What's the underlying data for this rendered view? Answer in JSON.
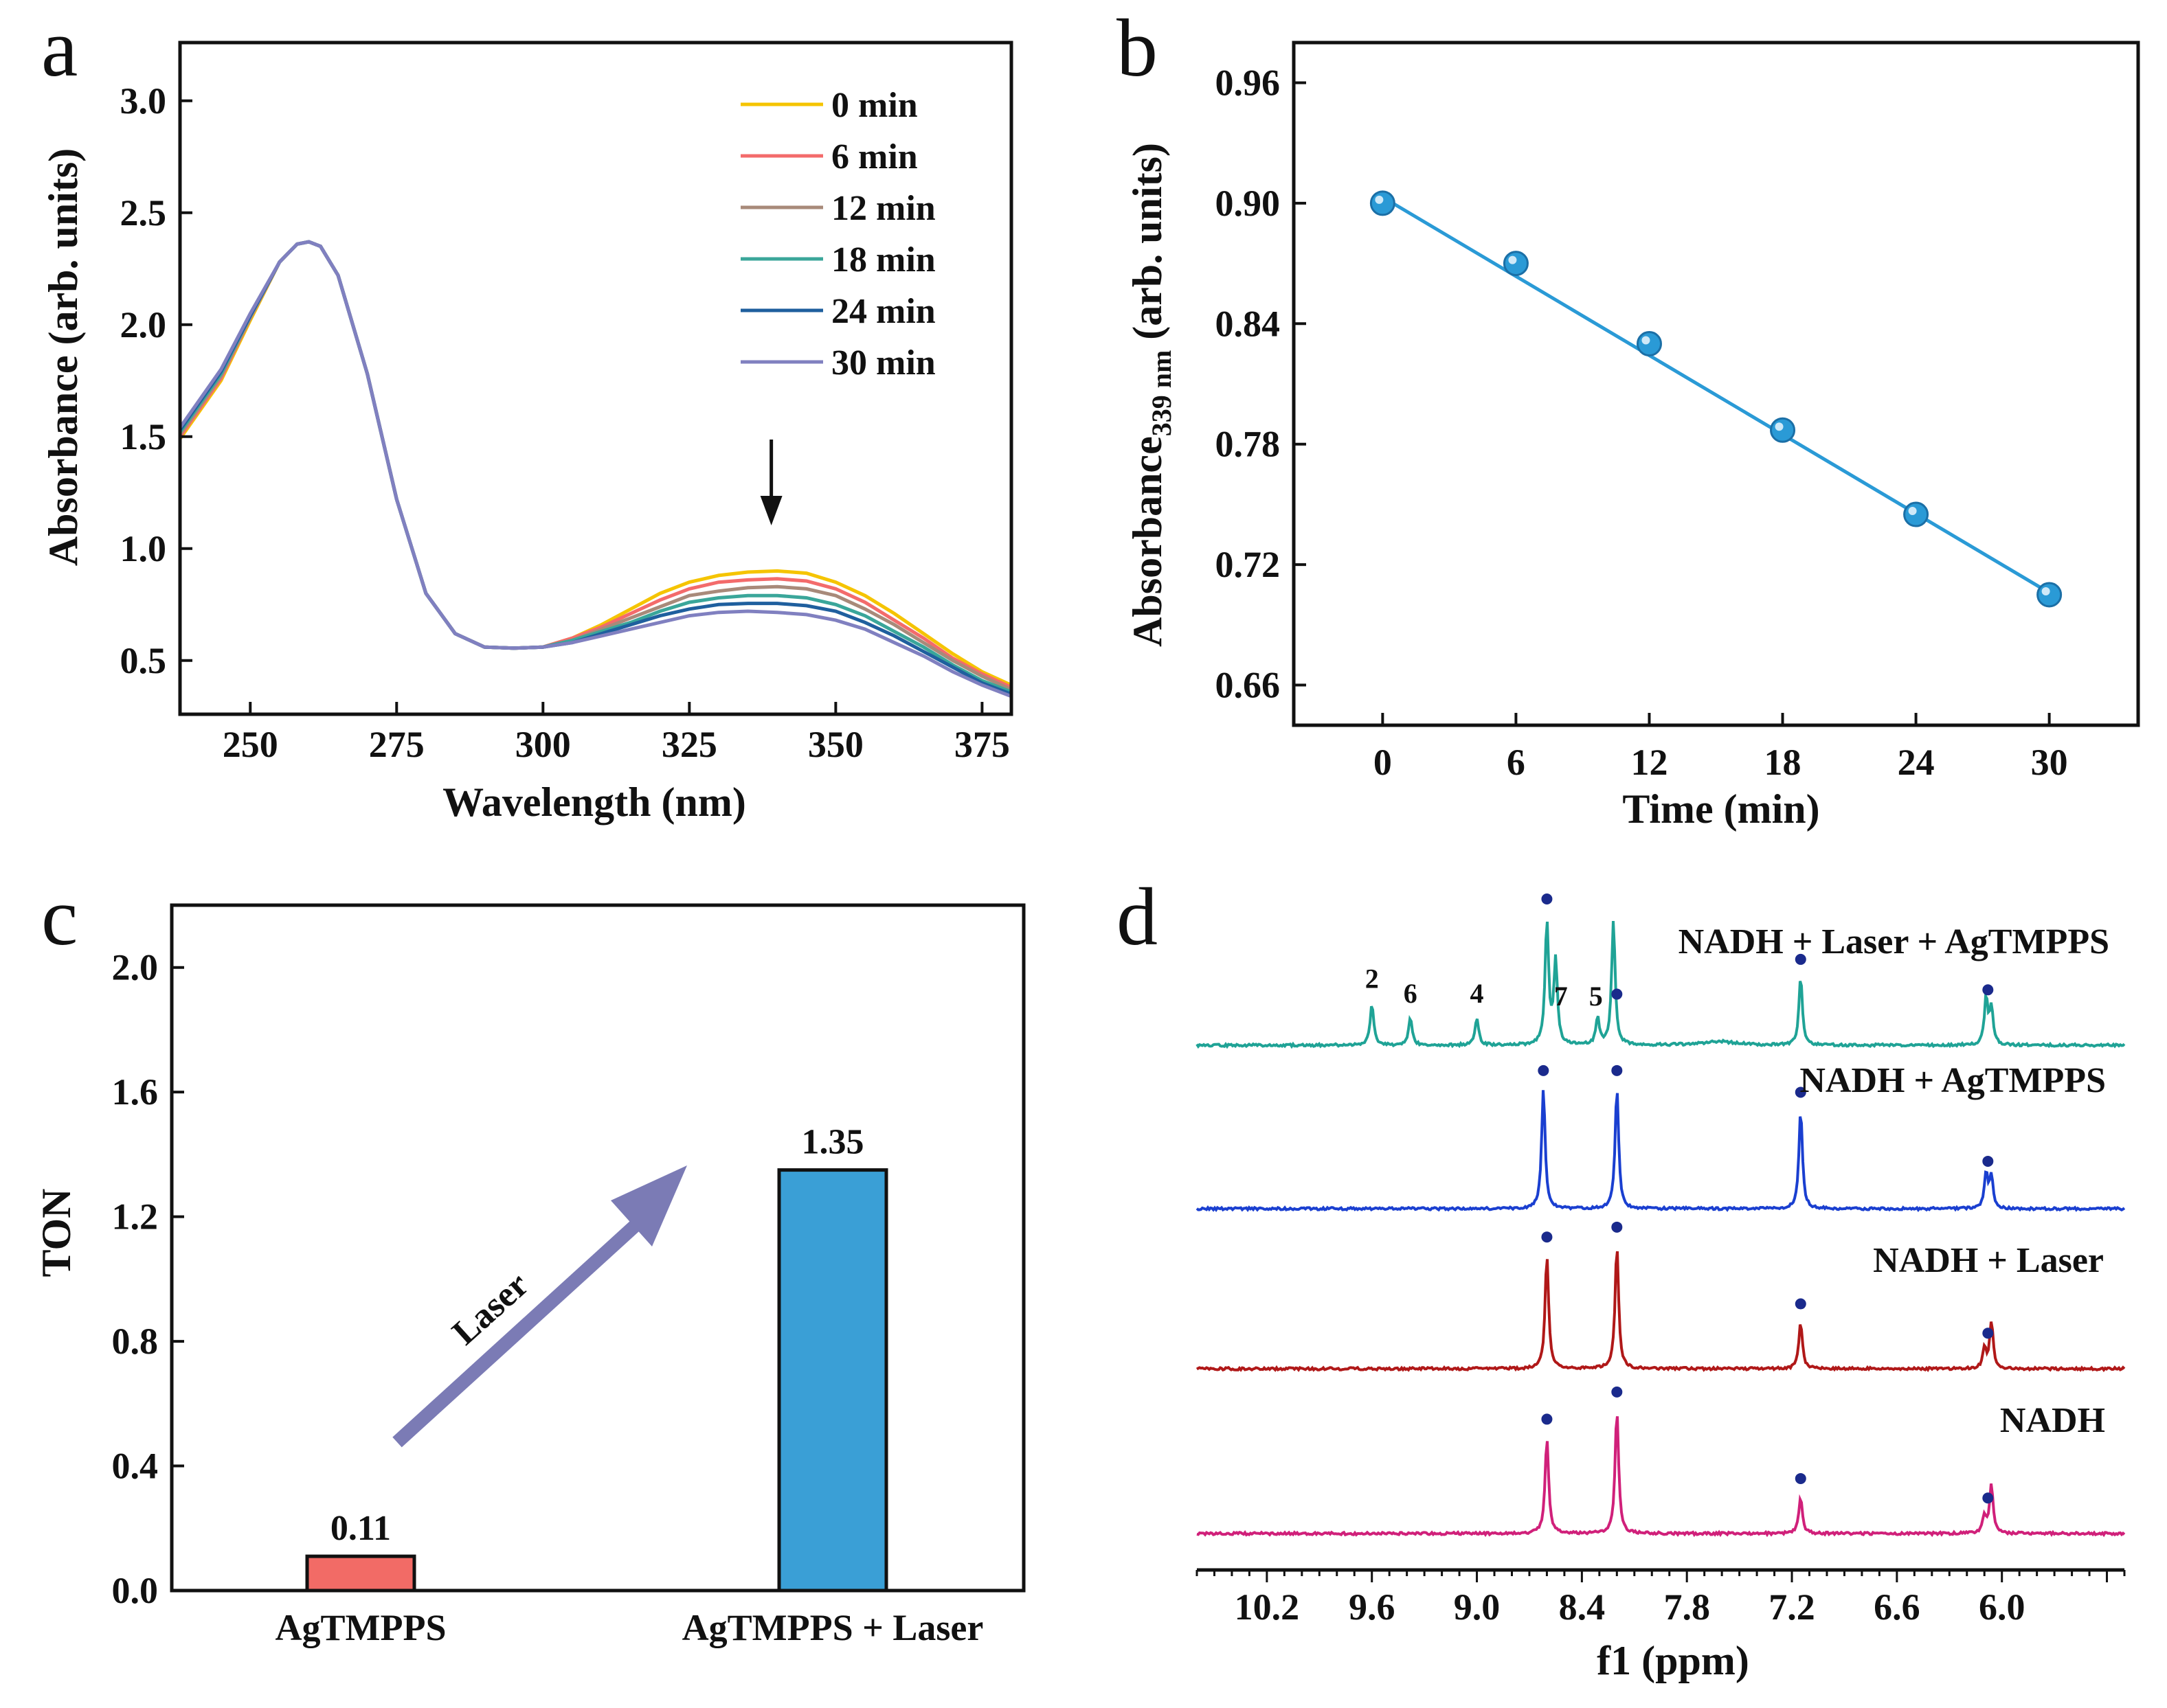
{
  "chart_data": [
    {
      "panel": "a",
      "type": "line",
      "xlabel": "Wavelength (nm)",
      "ylabel": "Absorbance (arb. units)",
      "xlim": [
        238,
        380
      ],
      "ylim": [
        0.26,
        3.26
      ],
      "xticks": [
        250,
        275,
        300,
        325,
        350,
        375
      ],
      "yticks": [
        0.5,
        1.0,
        1.5,
        2.0,
        2.5,
        3.0
      ],
      "xticklabels": [
        "250",
        "275",
        "300",
        "325",
        "350",
        "375"
      ],
      "yticklabels": [
        "0.5",
        "1.0",
        "1.5",
        "2.0",
        "2.5",
        "3.0"
      ],
      "annotation": "downward arrow at 339 nm",
      "x": [
        238,
        245,
        250,
        255,
        258,
        260,
        262,
        265,
        270,
        275,
        280,
        285,
        290,
        295,
        300,
        305,
        310,
        315,
        320,
        325,
        330,
        335,
        340,
        345,
        350,
        355,
        360,
        365,
        370,
        375,
        380
      ],
      "series": [
        {
          "name": "0 min",
          "color": "#f5c400",
          "values": [
            1.49,
            1.75,
            2.02,
            2.28,
            2.36,
            2.37,
            2.35,
            2.22,
            1.78,
            1.22,
            0.8,
            0.62,
            0.56,
            0.555,
            0.56,
            0.6,
            0.66,
            0.73,
            0.8,
            0.85,
            0.88,
            0.895,
            0.9,
            0.89,
            0.85,
            0.79,
            0.71,
            0.62,
            0.53,
            0.45,
            0.39
          ]
        },
        {
          "name": "6 min",
          "color": "#f36b6b",
          "values": [
            1.5,
            1.76,
            2.03,
            2.28,
            2.36,
            2.37,
            2.35,
            2.22,
            1.78,
            1.22,
            0.8,
            0.62,
            0.56,
            0.555,
            0.56,
            0.6,
            0.65,
            0.71,
            0.77,
            0.82,
            0.85,
            0.86,
            0.865,
            0.855,
            0.82,
            0.76,
            0.68,
            0.6,
            0.51,
            0.44,
            0.38
          ]
        },
        {
          "name": "12 min",
          "color": "#a88a7a",
          "values": [
            1.51,
            1.77,
            2.03,
            2.28,
            2.36,
            2.37,
            2.35,
            2.22,
            1.78,
            1.22,
            0.8,
            0.62,
            0.56,
            0.555,
            0.56,
            0.59,
            0.64,
            0.69,
            0.74,
            0.79,
            0.81,
            0.825,
            0.83,
            0.82,
            0.79,
            0.73,
            0.66,
            0.58,
            0.5,
            0.43,
            0.37
          ]
        },
        {
          "name": "18 min",
          "color": "#3aa69a",
          "values": [
            1.52,
            1.78,
            2.04,
            2.28,
            2.36,
            2.37,
            2.35,
            2.22,
            1.78,
            1.22,
            0.8,
            0.62,
            0.56,
            0.555,
            0.56,
            0.59,
            0.63,
            0.67,
            0.72,
            0.76,
            0.78,
            0.79,
            0.79,
            0.78,
            0.75,
            0.7,
            0.63,
            0.56,
            0.48,
            0.41,
            0.36
          ]
        },
        {
          "name": "24 min",
          "color": "#1f5f9e",
          "values": [
            1.53,
            1.79,
            2.04,
            2.28,
            2.36,
            2.37,
            2.35,
            2.22,
            1.78,
            1.22,
            0.8,
            0.62,
            0.56,
            0.555,
            0.56,
            0.58,
            0.62,
            0.66,
            0.7,
            0.73,
            0.75,
            0.755,
            0.755,
            0.745,
            0.72,
            0.67,
            0.61,
            0.54,
            0.47,
            0.4,
            0.35
          ]
        },
        {
          "name": "30 min",
          "color": "#8080c0",
          "values": [
            1.54,
            1.8,
            2.05,
            2.28,
            2.36,
            2.37,
            2.35,
            2.22,
            1.78,
            1.22,
            0.8,
            0.62,
            0.56,
            0.555,
            0.56,
            0.58,
            0.61,
            0.64,
            0.67,
            0.7,
            0.715,
            0.72,
            0.715,
            0.705,
            0.68,
            0.64,
            0.58,
            0.52,
            0.45,
            0.39,
            0.34
          ]
        }
      ]
    },
    {
      "panel": "b",
      "type": "scatter",
      "xlabel": "Time (min)",
      "ylabel": "Absorbance",
      "ylabel_sub": "339 nm",
      "ylabel_suffix": " (arb. units)",
      "xlim": [
        -4,
        34
      ],
      "ylim": [
        0.64,
        0.98
      ],
      "xticks": [
        0,
        6,
        12,
        18,
        24,
        30
      ],
      "yticks": [
        0.66,
        0.72,
        0.78,
        0.84,
        0.9,
        0.96
      ],
      "xticklabels": [
        "0",
        "6",
        "12",
        "18",
        "24",
        "30"
      ],
      "yticklabels": [
        "0.66",
        "0.72",
        "0.78",
        "0.84",
        "0.90",
        "0.96"
      ],
      "color": "#2a9ad6",
      "x": [
        0,
        6,
        12,
        18,
        24,
        30
      ],
      "y": [
        0.9,
        0.87,
        0.83,
        0.787,
        0.745,
        0.705
      ],
      "fit": {
        "x": [
          0,
          30
        ],
        "y": [
          0.903,
          0.706
        ]
      }
    },
    {
      "panel": "c",
      "type": "bar",
      "ylabel": "TON",
      "ylim": [
        0,
        2.2
      ],
      "yticks": [
        0.0,
        0.4,
        0.8,
        1.2,
        1.6,
        2.0
      ],
      "yticklabels": [
        "0.0",
        "0.4",
        "0.8",
        "1.2",
        "1.6",
        "2.0"
      ],
      "categories": [
        "AgTMPPS",
        "AgTMPPS + Laser"
      ],
      "values": [
        0.11,
        1.35
      ],
      "value_labels": [
        "0.11",
        "1.35"
      ],
      "colors": [
        "#f26b66",
        "#3a9fd6"
      ],
      "arrow_label": "Laser",
      "arrow_color": "#7b7bb5"
    },
    {
      "panel": "d",
      "type": "line",
      "xlabel": "f1 (ppm)",
      "xlim": [
        10.6,
        5.3
      ],
      "xticks": [
        10.2,
        9.6,
        9.0,
        8.4,
        7.8,
        7.2,
        6.6,
        6.0
      ],
      "xticklabels": [
        "10.2",
        "9.6",
        "9.0",
        "8.4",
        "7.8",
        "7.2",
        "6.6",
        "6.0"
      ],
      "dot_color": "#1a2a8c",
      "series": [
        {
          "name": "NADH + Laser + AgTMPPS",
          "color": "#1fa396",
          "peaks": [
            {
              "ppm": 9.6,
              "h": 0.34
            },
            {
              "ppm": 9.38,
              "h": 0.22
            },
            {
              "ppm": 9.0,
              "h": 0.22
            },
            {
              "ppm": 8.6,
              "h": 1.0
            },
            {
              "ppm": 8.55,
              "h": 0.68
            },
            {
              "ppm": 8.31,
              "h": 0.22
            },
            {
              "ppm": 8.22,
              "h": 1.0
            },
            {
              "ppm": 7.15,
              "h": 0.55
            },
            {
              "ppm": 6.09,
              "h": 0.38
            },
            {
              "ppm": 6.06,
              "h": 0.3
            }
          ],
          "dots": [
            8.6,
            8.2,
            7.15,
            6.08
          ],
          "labels": [
            {
              "text": "2",
              "ppm": 9.6
            },
            {
              "text": "6",
              "ppm": 9.38
            },
            {
              "text": "4",
              "ppm": 9.0
            },
            {
              "text": "7",
              "ppm": 8.52
            },
            {
              "text": "5",
              "ppm": 8.32
            }
          ]
        },
        {
          "name": "NADH + AgTMPPS",
          "color": "#1a3fd0",
          "peaks": [
            {
              "ppm": 8.62,
              "h": 1.0
            },
            {
              "ppm": 8.2,
              "h": 1.0
            },
            {
              "ppm": 7.15,
              "h": 0.82
            },
            {
              "ppm": 6.09,
              "h": 0.3
            },
            {
              "ppm": 6.06,
              "h": 0.26
            }
          ],
          "dots": [
            8.62,
            8.2,
            7.15,
            6.08
          ],
          "labels": []
        },
        {
          "name": "NADH + Laser",
          "color": "#b01818",
          "peaks": [
            {
              "ppm": 8.6,
              "h": 0.92
            },
            {
              "ppm": 8.2,
              "h": 1.0
            },
            {
              "ppm": 7.15,
              "h": 0.38
            },
            {
              "ppm": 6.1,
              "h": 0.16
            },
            {
              "ppm": 6.06,
              "h": 0.38
            }
          ],
          "dots": [
            8.6,
            8.2,
            7.15,
            6.08
          ],
          "labels": []
        },
        {
          "name": "NADH",
          "color": "#d0207a",
          "peaks": [
            {
              "ppm": 8.6,
              "h": 0.78
            },
            {
              "ppm": 8.2,
              "h": 1.0
            },
            {
              "ppm": 7.15,
              "h": 0.3
            },
            {
              "ppm": 6.1,
              "h": 0.14
            },
            {
              "ppm": 6.06,
              "h": 0.4
            }
          ],
          "dots": [
            8.6,
            8.2,
            7.15,
            6.08
          ],
          "labels": []
        }
      ]
    }
  ],
  "panel_labels": [
    "a",
    "b",
    "c",
    "d"
  ]
}
